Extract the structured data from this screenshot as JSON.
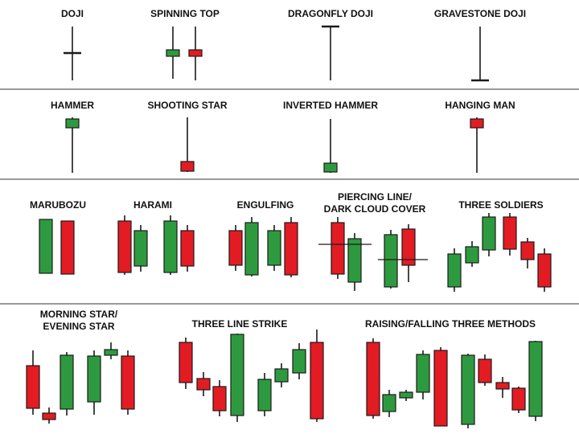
{
  "colors": {
    "bull": "#2e9a3f",
    "bear": "#e31b23",
    "wick": "#1a1a1a",
    "divider": "#9a9a9a"
  },
  "rows": [
    {
      "patterns": [
        {
          "id": "doji",
          "label": [
            "DOJI"
          ]
        },
        {
          "id": "spinning-top",
          "label": [
            "SPINNING TOP"
          ]
        },
        {
          "id": "dragonfly-doji",
          "label": [
            "DRAGONFLY DOJI"
          ]
        },
        {
          "id": "gravestone-doji",
          "label": [
            "GRAVESTONE DOJI"
          ]
        }
      ]
    },
    {
      "patterns": [
        {
          "id": "hammer",
          "label": [
            "HAMMER"
          ]
        },
        {
          "id": "shooting-star",
          "label": [
            "SHOOTING STAR"
          ]
        },
        {
          "id": "inverted-hammer",
          "label": [
            "INVERTED HAMMER"
          ]
        },
        {
          "id": "hanging-man",
          "label": [
            "HANGING MAN"
          ]
        }
      ]
    },
    {
      "patterns": [
        {
          "id": "marubozu",
          "label": [
            "MARUBOZU"
          ]
        },
        {
          "id": "harami",
          "label": [
            "HARAMI"
          ]
        },
        {
          "id": "engulfing",
          "label": [
            "ENGULFING"
          ]
        },
        {
          "id": "piercing-line-dark-cloud-cover",
          "label": [
            "PIERCING LINE/",
            "DARK CLOUD COVER"
          ]
        },
        {
          "id": "three-soldiers",
          "label": [
            "THREE SOLDIERS"
          ]
        }
      ]
    },
    {
      "patterns": [
        {
          "id": "morning-evening-star",
          "label": [
            "MORNING STAR/",
            "EVENING STAR"
          ]
        },
        {
          "id": "three-line-strike",
          "label": [
            "THREE LINE STRIKE"
          ]
        },
        {
          "id": "raising-falling-three-methods",
          "label": [
            "RAISING/FALLING THREE METHODS"
          ]
        }
      ]
    }
  ]
}
